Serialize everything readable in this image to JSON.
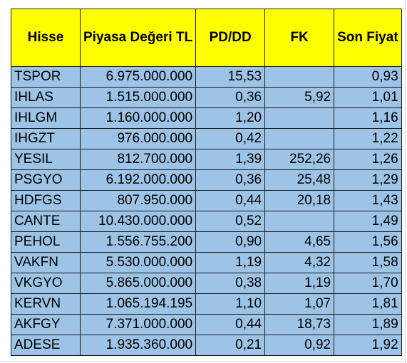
{
  "table": {
    "headers": {
      "hisse": "Hisse",
      "piyasa": "Piyasa Değeri TL",
      "pddd": "PD/DD",
      "fk": "FK",
      "fiyat": "Son Fiyat"
    },
    "rows": [
      {
        "hisse": "TSPOR",
        "piyasa": "6.975.000.000",
        "pddd": "15,53",
        "fk": "",
        "fiyat": "0,93"
      },
      {
        "hisse": "IHLAS",
        "piyasa": "1.515.000.000",
        "pddd": "0,36",
        "fk": "5,92",
        "fiyat": "1,01"
      },
      {
        "hisse": "IHLGM",
        "piyasa": "1.160.000.000",
        "pddd": "1,20",
        "fk": "",
        "fiyat": "1,16"
      },
      {
        "hisse": "IHGZT",
        "piyasa": "976.000.000",
        "pddd": "0,42",
        "fk": "",
        "fiyat": "1,22"
      },
      {
        "hisse": "YESIL",
        "piyasa": "812.700.000",
        "pddd": "1,39",
        "fk": "252,26",
        "fiyat": "1,26"
      },
      {
        "hisse": "PSGYO",
        "piyasa": "6.192.000.000",
        "pddd": "0,36",
        "fk": "25,48",
        "fiyat": "1,29"
      },
      {
        "hisse": "HDFGS",
        "piyasa": "807.950.000",
        "pddd": "0,44",
        "fk": "20,18",
        "fiyat": "1,43"
      },
      {
        "hisse": "CANTE",
        "piyasa": "10.430.000.000",
        "pddd": "0,52",
        "fk": "",
        "fiyat": "1,49"
      },
      {
        "hisse": "PEHOL",
        "piyasa": "1.556.755.200",
        "pddd": "0,90",
        "fk": "4,65",
        "fiyat": "1,56"
      },
      {
        "hisse": "VAKFN",
        "piyasa": "5.530.000.000",
        "pddd": "1,19",
        "fk": "4,32",
        "fiyat": "1,58"
      },
      {
        "hisse": "VKGYO",
        "piyasa": "5.865.000.000",
        "pddd": "0,38",
        "fk": "1,19",
        "fiyat": "1,70"
      },
      {
        "hisse": "KERVN",
        "piyasa": "1.065.194.195",
        "pddd": "1,10",
        "fk": "1,07",
        "fiyat": "1,81"
      },
      {
        "hisse": "AKFGY",
        "piyasa": "7.371.000.000",
        "pddd": "0,44",
        "fk": "18,73",
        "fiyat": "1,89"
      },
      {
        "hisse": "ADESE",
        "piyasa": "1.935.360.000",
        "pddd": "0,21",
        "fk": "0,92",
        "fiyat": "1,92"
      }
    ]
  },
  "colors": {
    "header_fill": "#ffff00",
    "cell_fill": "#9dc3e6",
    "border": "#1a1a1a"
  }
}
